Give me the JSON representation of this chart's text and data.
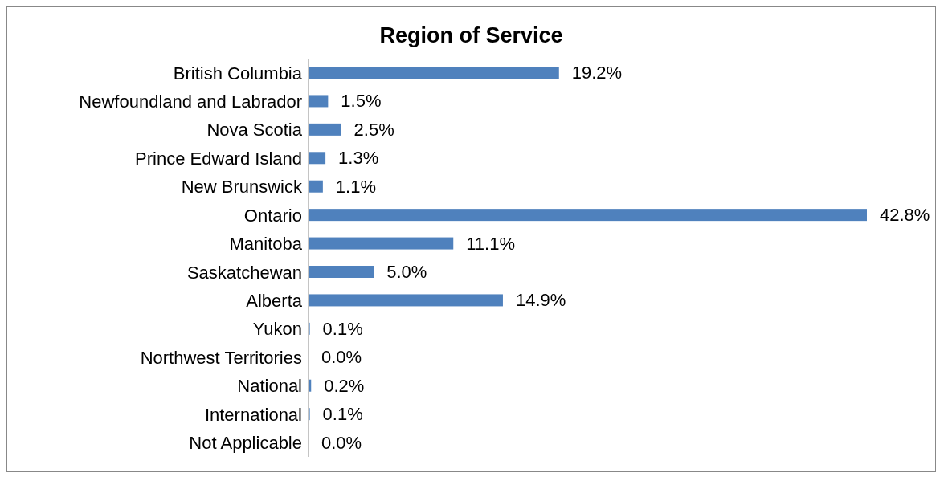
{
  "chart_data": {
    "type": "bar",
    "orientation": "horizontal",
    "title": "Region of Service",
    "categories": [
      "British Columbia",
      "Newfoundland and Labrador",
      "Nova Scotia",
      "Prince Edward Island",
      "New Brunswick",
      "Ontario",
      "Manitoba",
      "Saskatchewan",
      "Alberta",
      "Yukon",
      "Northwest Territories",
      "National",
      "International",
      "Not Applicable"
    ],
    "values": [
      19.2,
      1.5,
      2.5,
      1.3,
      1.1,
      42.8,
      11.1,
      5.0,
      14.9,
      0.1,
      0.0,
      0.2,
      0.1,
      0.0
    ],
    "value_labels": [
      "19.2%",
      "1.5%",
      "2.5%",
      "1.3%",
      "1.1%",
      "42.8%",
      "11.1%",
      "5.0%",
      "14.9%",
      "0.1%",
      "0.0%",
      "0.2%",
      "0.1%",
      "0.0%"
    ],
    "color": "#4f81bd",
    "grid": false,
    "tick_labels": "y"
  }
}
